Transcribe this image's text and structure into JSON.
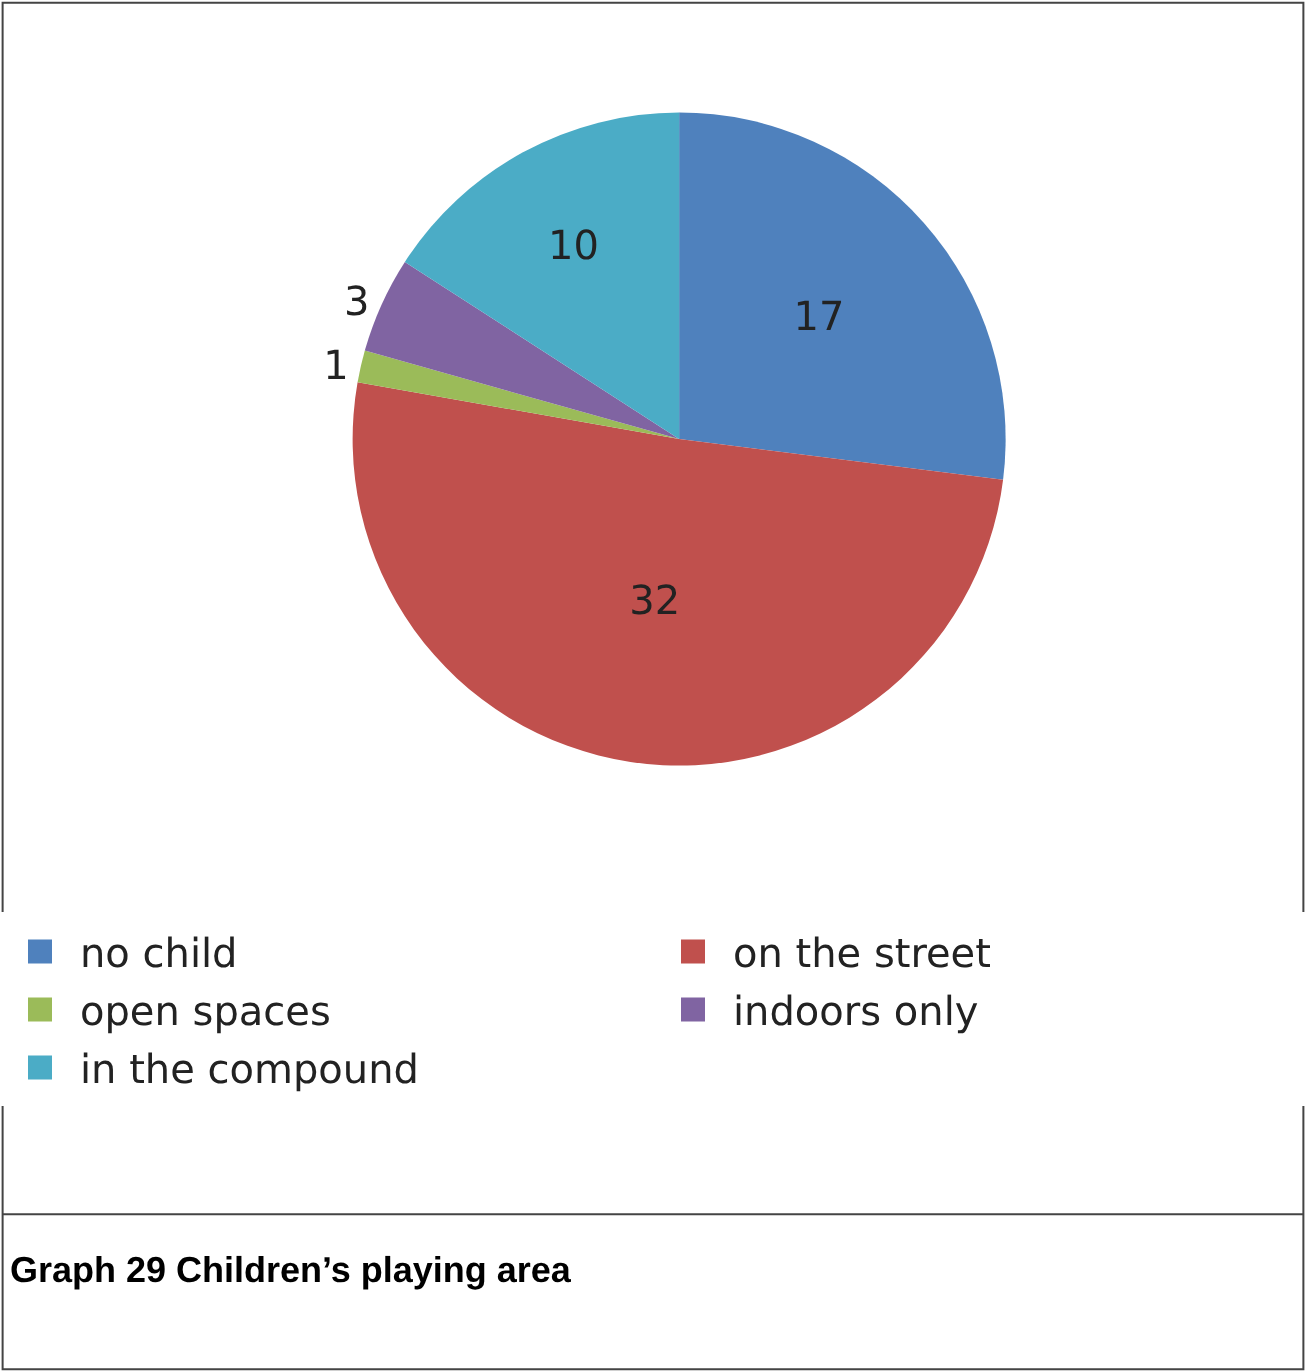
{
  "chart_data": {
    "type": "pie",
    "categories": [
      "no child",
      "on the street",
      "open spaces",
      "indoors only",
      "in the compound"
    ],
    "values": [
      17,
      32,
      1,
      3,
      10
    ],
    "colors": [
      "#4f81bd",
      "#c0504d",
      "#9bbb59",
      "#8064a2",
      "#4bacc6"
    ],
    "data_labels": true,
    "legend": "bottom",
    "annotations": [
      "Graph 29 Children’s playing area"
    ]
  }
}
